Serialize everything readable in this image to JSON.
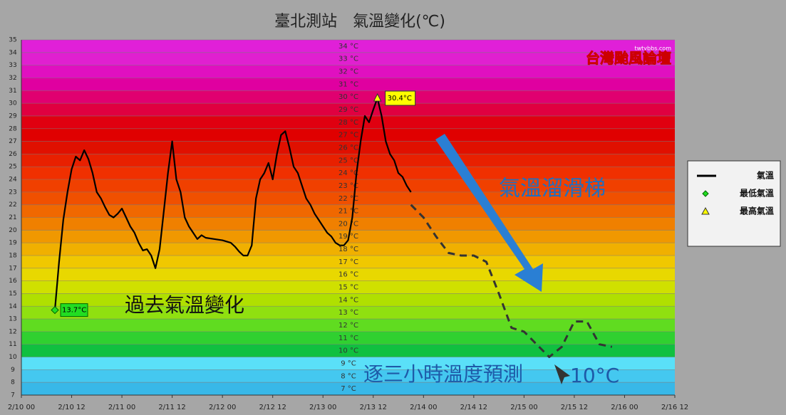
{
  "chart_data": {
    "type": "line",
    "title": "臺北測站　氣溫變化(℃)",
    "xlim": [
      "2/10 00",
      "2/16 12"
    ],
    "xticks": [
      "2/10 00",
      "2/10 12",
      "2/11 00",
      "2/11 12",
      "2/12 00",
      "2/12 12",
      "2/13 00",
      "2/13 12",
      "2/14 00",
      "2/14 12",
      "2/15 00",
      "2/15 12",
      "2/16 00",
      "2/16 12"
    ],
    "ylim": [
      7,
      35
    ],
    "yticks": [
      7,
      8,
      9,
      10,
      11,
      12,
      13,
      14,
      15,
      16,
      17,
      18,
      19,
      20,
      21,
      22,
      23,
      24,
      25,
      26,
      27,
      28,
      29,
      30,
      31,
      32,
      33,
      34,
      35
    ],
    "inner_yticks": [
      {
        "value": 7,
        "label": "7 °C"
      },
      {
        "value": 8,
        "label": "8 °C"
      },
      {
        "value": 9,
        "label": "9 °C"
      },
      {
        "value": 10,
        "label": "10 °C"
      },
      {
        "value": 11,
        "label": "11 °C"
      },
      {
        "value": 12,
        "label": "12 °C"
      },
      {
        "value": 13,
        "label": "13 °C"
      },
      {
        "value": 14,
        "label": "14 °C"
      },
      {
        "value": 15,
        "label": "15 °C"
      },
      {
        "value": 16,
        "label": "16 °C"
      },
      {
        "value": 17,
        "label": "17 °C"
      },
      {
        "value": 18,
        "label": "18 °C"
      },
      {
        "value": 19,
        "label": "19 °C"
      },
      {
        "value": 20,
        "label": "20 °C"
      },
      {
        "value": 21,
        "label": "21 °C"
      },
      {
        "value": 22,
        "label": "22 °C"
      },
      {
        "value": 23,
        "label": "23 °C"
      },
      {
        "value": 24,
        "label": "24 °C"
      },
      {
        "value": 25,
        "label": "25 °C"
      },
      {
        "value": 26,
        "label": "26 °C"
      },
      {
        "value": 27,
        "label": "27 °C"
      },
      {
        "value": 28,
        "label": "28 °C"
      },
      {
        "value": 29,
        "label": "29 °C"
      },
      {
        "value": 30,
        "label": "30 °C"
      },
      {
        "value": 31,
        "label": "31 °C"
      },
      {
        "value": 32,
        "label": "32 °C"
      },
      {
        "value": 33,
        "label": "33 °C"
      },
      {
        "value": 34,
        "label": "34 °C"
      }
    ],
    "band_colors": [
      "#38b8e8",
      "#44c8f0",
      "#5ae0f8",
      "#10c040",
      "#30d030",
      "#60dc20",
      "#90e010",
      "#b0e000",
      "#d0e000",
      "#e8d800",
      "#f0c800",
      "#f0b000",
      "#f09800",
      "#f08000",
      "#f06800",
      "#f05000",
      "#f04000",
      "#f03000",
      "#e82000",
      "#e01000",
      "#e00000",
      "#e00010",
      "#e00040",
      "#e00070",
      "#e000a0",
      "#e010c0",
      "#e020d0",
      "#e020d8"
    ],
    "grid": true,
    "series": [
      {
        "name": "氣溫",
        "color": "#000000",
        "marker": "line",
        "x": [
          "2/10 08",
          "2/10 09",
          "2/10 10",
          "2/10 11",
          "2/10 12",
          "2/10 13",
          "2/10 14",
          "2/10 15",
          "2/10 16",
          "2/10 17",
          "2/10 18",
          "2/10 19",
          "2/10 20",
          "2/10 21",
          "2/10 22",
          "2/10 23",
          "2/11 00",
          "2/11 01",
          "2/11 02",
          "2/11 03",
          "2/11 04",
          "2/11 05",
          "2/11 06",
          "2/11 07",
          "2/11 08",
          "2/11 09",
          "2/11 10",
          "2/11 11",
          "2/11 12",
          "2/11 13",
          "2/11 14",
          "2/11 15",
          "2/11 16",
          "2/11 17",
          "2/11 18",
          "2/11 19",
          "2/11 20",
          "2/11 22",
          "2/12 00",
          "2/12 02",
          "2/12 03",
          "2/12 04",
          "2/12 05",
          "2/12 06",
          "2/12 07",
          "2/12 08",
          "2/12 09",
          "2/12 10",
          "2/12 11",
          "2/12 12",
          "2/12 13",
          "2/12 14",
          "2/12 15",
          "2/12 16",
          "2/12 17",
          "2/12 18",
          "2/12 19",
          "2/12 20",
          "2/12 21",
          "2/12 22",
          "2/12 23",
          "2/13 00",
          "2/13 01",
          "2/13 02",
          "2/13 03",
          "2/13 04",
          "2/13 05",
          "2/13 06",
          "2/13 07",
          "2/13 08",
          "2/13 09",
          "2/13 10",
          "2/13 11",
          "2/13 12",
          "2/13 13",
          "2/13 14",
          "2/13 15",
          "2/13 16",
          "2/13 17",
          "2/13 18",
          "2/13 19",
          "2/13 20",
          "2/13 21"
        ],
        "values": [
          13.7,
          17.5,
          20.8,
          23,
          24.8,
          25.8,
          25.5,
          26.3,
          25.6,
          24.5,
          23,
          22.5,
          21.8,
          21.2,
          21,
          21.3,
          21.7,
          21,
          20.3,
          19.8,
          19,
          18.4,
          18.5,
          18,
          17,
          18.5,
          21.5,
          24.5,
          27,
          24,
          23,
          21,
          20.3,
          19.8,
          19.3,
          19.6,
          19.4,
          19.3,
          19.2,
          19,
          18.7,
          18.3,
          18,
          18,
          18.8,
          22.5,
          24,
          24.5,
          25.3,
          24,
          26,
          27.5,
          27.8,
          26.5,
          25,
          24.5,
          23.5,
          22.5,
          22,
          21.3,
          20.8,
          20.3,
          19.8,
          19.5,
          19,
          18.8,
          18.8,
          19.2,
          21,
          24.5,
          27,
          29,
          28.5,
          29.5,
          30.4,
          29,
          27,
          26,
          25.5,
          24.5,
          24.2,
          23.5,
          23
        ]
      },
      {
        "name": "最低氣溫",
        "color": "#22dd22",
        "marker": "diamond",
        "x": [
          "2/10 08"
        ],
        "values": [
          13.7
        ],
        "value_labels": [
          "13.7°C"
        ]
      },
      {
        "name": "最高氣溫",
        "color": "#ffff00",
        "marker": "triangle",
        "x": [
          "2/13 13"
        ],
        "values": [
          30.4
        ],
        "value_labels": [
          "30.4°C"
        ]
      }
    ],
    "forecast": {
      "color": "#333333",
      "x": [
        "2/13 21",
        "2/14 00",
        "2/14 03",
        "2/14 06",
        "2/14 09",
        "2/14 12",
        "2/14 15",
        "2/14 18",
        "2/14 21",
        "2/15 00",
        "2/15 03",
        "2/15 06",
        "2/15 09",
        "2/15 12",
        "2/15 15",
        "2/15 18",
        "2/15 21"
      ],
      "values": [
        22,
        21,
        19.5,
        18.2,
        18,
        18,
        17.5,
        15,
        12.3,
        12,
        11,
        10,
        10.8,
        12.8,
        12.8,
        11,
        10.8
      ]
    },
    "annotations": [
      "過去氣溫變化",
      "氣溫溜滑梯",
      "逐三小時溫度預測",
      "10°C"
    ],
    "logo": "台灣颱風論壇",
    "logo_url": "twtybbs.com"
  }
}
